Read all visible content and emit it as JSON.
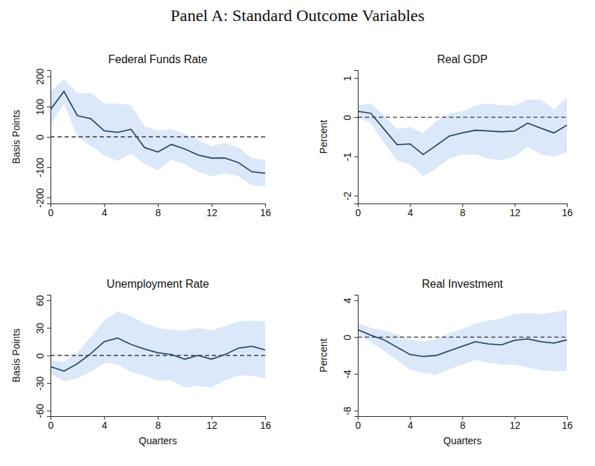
{
  "title": "Panel A: Standard Outcome Variables",
  "chart_data": [
    {
      "type": "line",
      "title": "Federal Funds Rate",
      "ylabel": "Basis Points",
      "x": [
        0,
        1,
        2,
        3,
        4,
        5,
        6,
        7,
        8,
        9,
        10,
        11,
        12,
        13,
        14,
        15,
        16
      ],
      "xlim": [
        0,
        16
      ],
      "xticks": [
        0,
        4,
        8,
        12,
        16
      ],
      "ylim": [
        -220,
        220
      ],
      "yticks": [
        -200,
        -100,
        0,
        100,
        200
      ],
      "hline": 0,
      "series": [
        {
          "color": "#2b4a68",
          "values": [
            90,
            150,
            70,
            60,
            20,
            15,
            25,
            -35,
            -50,
            -25,
            -40,
            -60,
            -70,
            -70,
            -85,
            -115,
            -120
          ],
          "lower": [
            40,
            110,
            0,
            -30,
            -60,
            -80,
            -55,
            -90,
            -110,
            -75,
            -90,
            -115,
            -130,
            -120,
            -130,
            -160,
            -165
          ],
          "upper": [
            150,
            190,
            145,
            145,
            110,
            110,
            105,
            35,
            20,
            25,
            10,
            -10,
            -30,
            -20,
            -35,
            -70,
            -75
          ]
        }
      ]
    },
    {
      "type": "line",
      "title": "Real GDP",
      "ylabel": "Percent",
      "x": [
        0,
        1,
        2,
        3,
        4,
        5,
        6,
        7,
        8,
        9,
        10,
        11,
        12,
        13,
        14,
        15,
        16
      ],
      "xlim": [
        0,
        16
      ],
      "xticks": [
        0,
        4,
        8,
        12,
        16
      ],
      "ylim": [
        -2.2,
        1.2
      ],
      "yticks": [
        -2,
        -1,
        0,
        1
      ],
      "hline": 0,
      "series": [
        {
          "color": "#2b4a68",
          "values": [
            0.15,
            0.1,
            -0.3,
            -0.7,
            -0.68,
            -0.95,
            -0.72,
            -0.48,
            -0.4,
            -0.33,
            -0.35,
            -0.37,
            -0.35,
            -0.15,
            -0.28,
            -0.4,
            -0.2
          ],
          "lower": [
            0,
            -0.15,
            -0.65,
            -1.1,
            -1.2,
            -1.5,
            -1.3,
            -1.05,
            -0.95,
            -0.95,
            -1.05,
            -1.1,
            -1.0,
            -0.75,
            -0.95,
            -1.0,
            -0.9
          ],
          "upper": [
            0.3,
            0.35,
            0.05,
            -0.3,
            -0.25,
            -0.4,
            -0.1,
            0.1,
            0.15,
            0.3,
            0.35,
            0.3,
            0.3,
            0.45,
            0.45,
            0.2,
            0.5
          ]
        }
      ]
    },
    {
      "type": "line",
      "title": "Unemployment Rate",
      "ylabel": "Basis Points",
      "xlabel": "Quarters",
      "x": [
        0,
        1,
        2,
        3,
        4,
        5,
        6,
        7,
        8,
        9,
        10,
        11,
        12,
        13,
        14,
        15,
        16
      ],
      "xlim": [
        0,
        16
      ],
      "xticks": [
        0,
        4,
        8,
        12,
        16
      ],
      "ylim": [
        -66,
        66
      ],
      "yticks": [
        -60,
        -30,
        0,
        30,
        60
      ],
      "hline": 0,
      "series": [
        {
          "color": "#2b4a68",
          "values": [
            -12,
            -17,
            -9,
            2,
            15,
            19,
            12,
            7,
            3,
            1,
            -4,
            0,
            -4,
            1,
            8,
            10,
            6
          ],
          "lower": [
            -20,
            -28,
            -25,
            -18,
            -8,
            -10,
            -18,
            -22,
            -27,
            -27,
            -35,
            -33,
            -35,
            -27,
            -22,
            -22,
            -25
          ],
          "upper": [
            -5,
            -7,
            3,
            20,
            38,
            48,
            43,
            35,
            30,
            28,
            27,
            30,
            27,
            32,
            37,
            38,
            37
          ]
        }
      ]
    },
    {
      "type": "line",
      "title": "Real Investment",
      "ylabel": "Percent",
      "xlabel": "Quarters",
      "x": [
        0,
        1,
        2,
        3,
        4,
        5,
        6,
        7,
        8,
        9,
        10,
        11,
        12,
        13,
        14,
        15,
        16
      ],
      "xlim": [
        0,
        16
      ],
      "xticks": [
        0,
        4,
        8,
        12,
        16
      ],
      "ylim": [
        -8.6,
        4.6
      ],
      "yticks": [
        -8,
        -4,
        0,
        4
      ],
      "hline": 0,
      "series": [
        {
          "color": "#2b4a68",
          "values": [
            0.8,
            0.2,
            -0.3,
            -1.1,
            -1.9,
            -2.1,
            -2.0,
            -1.5,
            -1.0,
            -0.5,
            -0.75,
            -0.85,
            -0.35,
            -0.2,
            -0.5,
            -0.65,
            -0.3
          ],
          "lower": [
            0.3,
            -0.6,
            -1.5,
            -2.5,
            -3.5,
            -3.9,
            -4.1,
            -3.5,
            -3.0,
            -2.5,
            -2.8,
            -3.0,
            -3.0,
            -3.3,
            -3.6,
            -3.7,
            -3.7
          ],
          "upper": [
            1.5,
            1.0,
            0.7,
            0.3,
            -0.3,
            -0.5,
            -0.2,
            0.4,
            0.9,
            1.5,
            1.8,
            2.0,
            2.5,
            2.6,
            2.5,
            2.7,
            3.0
          ]
        }
      ]
    }
  ]
}
